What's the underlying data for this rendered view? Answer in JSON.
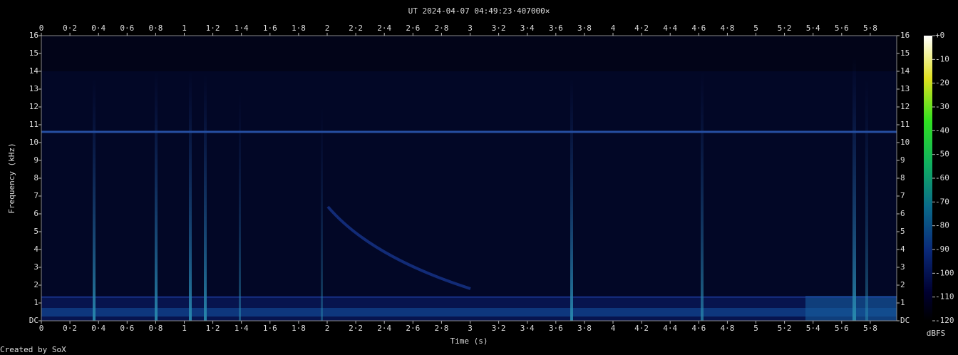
{
  "chart_data": {
    "type": "spectrogram",
    "title": "UT 2024-04-07 04:49:23·407000×",
    "x_label": "Time (s)",
    "y_label": "Frequency (kHz)",
    "colorbar_label": "dBFS",
    "footer": "Created by SoX",
    "xlim": [
      0,
      5.985
    ],
    "ylim": [
      0,
      16
    ],
    "clim": [
      -120,
      0
    ],
    "xticks": [
      0,
      {
        "value": 0.2,
        "label": "0·2"
      },
      {
        "value": 0.4,
        "label": "0·4"
      },
      {
        "value": 0.6,
        "label": "0·6"
      },
      {
        "value": 0.8,
        "label": "0·8"
      },
      1,
      {
        "value": 1.2,
        "label": "1·2"
      },
      {
        "value": 1.4,
        "label": "1·4"
      },
      {
        "value": 1.6,
        "label": "1·6"
      },
      {
        "value": 1.8,
        "label": "1·8"
      },
      2,
      {
        "value": 2.2,
        "label": "2·2"
      },
      {
        "value": 2.4,
        "label": "2·4"
      },
      {
        "value": 2.6,
        "label": "2·6"
      },
      {
        "value": 2.8,
        "label": "2·8"
      },
      3,
      {
        "value": 3.2,
        "label": "3·2"
      },
      {
        "value": 3.4,
        "label": "3·4"
      },
      {
        "value": 3.6,
        "label": "3·6"
      },
      {
        "value": 3.8,
        "label": "3·8"
      },
      4,
      {
        "value": 4.2,
        "label": "4·2"
      },
      {
        "value": 4.4,
        "label": "4·4"
      },
      {
        "value": 4.6,
        "label": "4·6"
      },
      {
        "value": 4.8,
        "label": "4·8"
      },
      5,
      {
        "value": 5.2,
        "label": "5·2"
      },
      {
        "value": 5.4,
        "label": "5·4"
      },
      {
        "value": 5.6,
        "label": "5·6"
      },
      {
        "value": 5.8,
        "label": "5·8"
      }
    ],
    "yticks": [
      {
        "value": 0,
        "label": "DC"
      },
      1,
      2,
      3,
      4,
      5,
      6,
      7,
      8,
      9,
      10,
      11,
      12,
      13,
      14,
      15,
      16
    ],
    "cticks": [
      {
        "value": 0,
        "label": "+0"
      },
      -10,
      -20,
      -30,
      -40,
      -50,
      -60,
      -70,
      -80,
      -90,
      -100,
      -110,
      -120
    ]
  }
}
